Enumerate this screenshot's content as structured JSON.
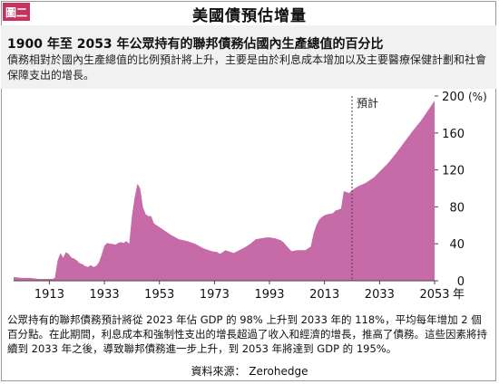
{
  "badge": "圖二",
  "title": "美國債預估增量",
  "subtitle": "1900 年至 2053 年公眾持有的聯邦債務佔國內生產總值的百分比",
  "description": "債務相對於國內生產總值的比例預計將上升，主要是由於利息成本增加以及主要醫療保健計劃和社會保障支出的增長。",
  "footer": "公眾持有的聯邦債務預計將從 2023 年佔 GDP 的 98% 上升到 2033 年的 118%，平均每年增加 2 個百分點。在此期間，利息成本和強制性支出的增長超過了收入和經濟的增長，推高了債務。這些因素將持續到 2033 年之後，導致聯邦債務進一步上升，到 2053 年將達到 GDP 的 195%。",
  "source": "資料來源： Zerohedge",
  "colors": {
    "area": "#c66aa8",
    "badge": "#c9325f",
    "band": "#f1f1f1"
  },
  "chart_data": {
    "type": "area",
    "xlim": [
      1900,
      2053
    ],
    "ylim": [
      0,
      200
    ],
    "y_unit": "(%)",
    "x_ticks": [
      {
        "value": 1913,
        "label": "1913"
      },
      {
        "value": 1933,
        "label": "1933"
      },
      {
        "value": 1953,
        "label": "1953"
      },
      {
        "value": 1973,
        "label": "1973"
      },
      {
        "value": 1993,
        "label": "1993"
      },
      {
        "value": 2013,
        "label": "2013"
      },
      {
        "value": 2033,
        "label": "2033"
      },
      {
        "value": 2053,
        "label": "2053"
      }
    ],
    "x_unit": "年",
    "y_ticks": [
      0,
      40,
      80,
      120,
      160,
      200
    ],
    "projection_start": 2023,
    "projection_label": "預計",
    "grid": false,
    "x": [
      1900,
      1903,
      1906,
      1909,
      1912,
      1914,
      1915,
      1916,
      1917,
      1918,
      1919,
      1920,
      1921,
      1922,
      1923,
      1924,
      1925,
      1926,
      1927,
      1928,
      1929,
      1930,
      1931,
      1932,
      1933,
      1934,
      1935,
      1936,
      1937,
      1938,
      1939,
      1940,
      1941,
      1942,
      1943,
      1944,
      1945,
      1946,
      1947,
      1948,
      1949,
      1950,
      1951,
      1952,
      1953,
      1955,
      1957,
      1960,
      1963,
      1966,
      1969,
      1970,
      1972,
      1974,
      1975,
      1976,
      1977,
      1980,
      1982,
      1984,
      1986,
      1988,
      1990,
      1992,
      1993,
      1995,
      1997,
      1998,
      2000,
      2001,
      2003,
      2006,
      2008,
      2009,
      2010,
      2011,
      2012,
      2013,
      2014,
      2016,
      2017,
      2018,
      2019,
      2020,
      2021,
      2022,
      2023,
      2025,
      2028,
      2031,
      2033,
      2036,
      2039,
      2042,
      2045,
      2048,
      2051,
      2053
    ],
    "y": [
      4,
      3,
      3,
      2,
      2,
      2,
      3,
      22,
      30,
      25,
      31,
      29,
      25,
      24,
      22,
      19,
      18,
      16,
      15,
      17,
      15,
      16,
      20,
      28,
      38,
      41,
      40,
      40,
      39,
      41,
      42,
      41,
      43,
      40,
      70,
      90,
      105,
      100,
      80,
      72,
      70,
      70,
      62,
      60,
      58,
      54,
      50,
      45,
      43,
      40,
      35,
      34,
      32,
      31,
      29,
      31,
      33,
      30,
      33,
      36,
      40,
      45,
      46,
      47,
      47,
      46,
      44,
      42,
      35,
      32,
      33,
      33,
      37,
      51,
      60,
      66,
      69,
      71,
      72,
      73,
      76,
      77,
      78,
      97,
      96,
      95,
      98,
      102,
      106,
      112,
      118,
      127,
      138,
      150,
      162,
      173,
      186,
      195
    ]
  }
}
